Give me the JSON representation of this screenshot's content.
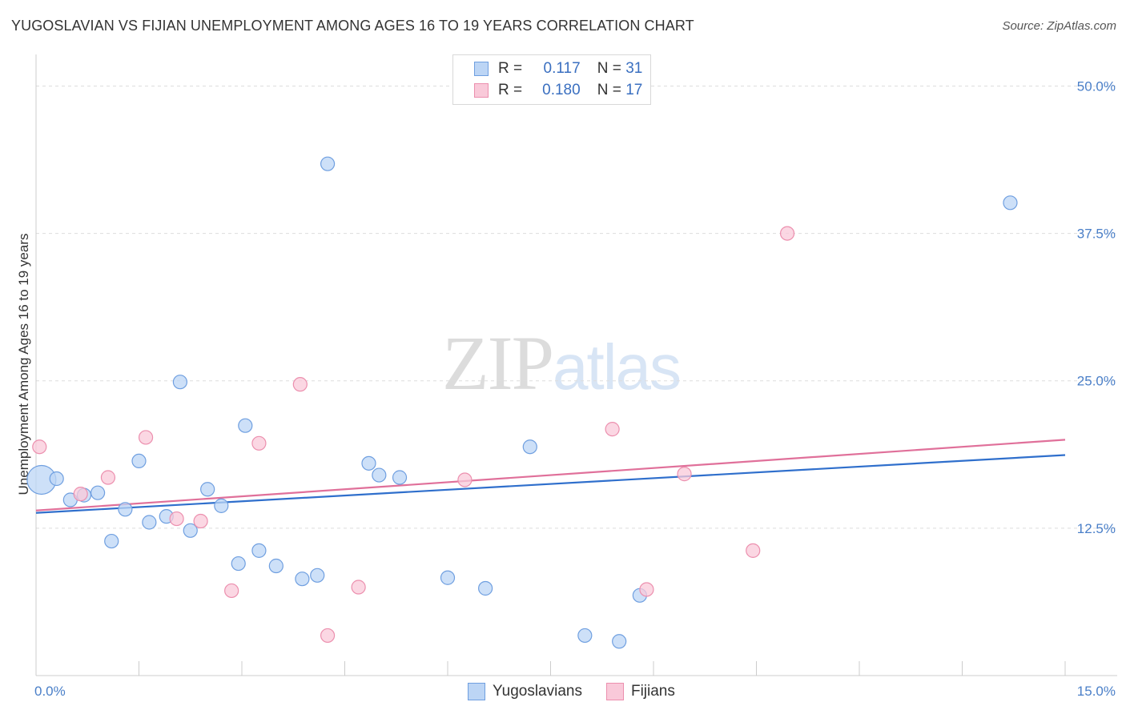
{
  "title": "YUGOSLAVIAN VS FIJIAN UNEMPLOYMENT AMONG AGES 16 TO 19 YEARS CORRELATION CHART",
  "source": "Source: ZipAtlas.com",
  "watermark": {
    "zip": "ZIP",
    "atlas": "atlas"
  },
  "legend": {
    "r_label": "R =",
    "n_label": "N =",
    "rows": [
      {
        "r": "0.117",
        "n": "31",
        "fill": "#bcd5f5",
        "stroke": "#6f9fe0"
      },
      {
        "r": "0.180",
        "n": "17",
        "fill": "#f9c9d9",
        "stroke": "#ec8fae"
      }
    ]
  },
  "bottom_legend": [
    {
      "label": "Yugoslavians",
      "fill": "#bcd5f5",
      "stroke": "#6f9fe0"
    },
    {
      "label": "Fijians",
      "fill": "#f9c9d9",
      "stroke": "#ec8fae"
    }
  ],
  "chart_data": {
    "type": "scatter",
    "title": "YUGOSLAVIAN VS FIJIAN UNEMPLOYMENT AMONG AGES 16 TO 19 YEARS CORRELATION CHART",
    "xlabel": "",
    "ylabel": "Unemployment Among Ages 16 to 19 years",
    "xlim": [
      0,
      15
    ],
    "ylim": [
      0,
      52
    ],
    "x_tick_labels": [
      {
        "value": 0,
        "label": "0.0%"
      },
      {
        "value": 15,
        "label": "15.0%"
      }
    ],
    "y_tick_labels": [
      {
        "value": 12.5,
        "label": "12.5%"
      },
      {
        "value": 25,
        "label": "25.0%"
      },
      {
        "value": 37.5,
        "label": "37.5%"
      },
      {
        "value": 50,
        "label": "50.0%"
      }
    ],
    "grid": true,
    "series": [
      {
        "name": "Yugoslavians",
        "color": "#6f9fe0",
        "fill": "#bcd5f5",
        "line_color": "#2f6fcc",
        "trend": {
          "x": [
            0,
            15
          ],
          "y": [
            13.8,
            18.7
          ]
        },
        "points": [
          {
            "x": 0.08,
            "y": 16.6,
            "big": true
          },
          {
            "x": 0.3,
            "y": 16.7
          },
          {
            "x": 0.5,
            "y": 14.9
          },
          {
            "x": 0.7,
            "y": 15.3
          },
          {
            "x": 0.9,
            "y": 15.5
          },
          {
            "x": 1.1,
            "y": 11.4
          },
          {
            "x": 1.3,
            "y": 14.1
          },
          {
            "x": 1.5,
            "y": 18.2
          },
          {
            "x": 1.65,
            "y": 13.0
          },
          {
            "x": 1.9,
            "y": 13.5
          },
          {
            "x": 2.1,
            "y": 24.9
          },
          {
            "x": 2.25,
            "y": 12.3
          },
          {
            "x": 2.5,
            "y": 15.8
          },
          {
            "x": 2.7,
            "y": 14.4
          },
          {
            "x": 2.95,
            "y": 9.5
          },
          {
            "x": 3.05,
            "y": 21.2
          },
          {
            "x": 3.25,
            "y": 10.6
          },
          {
            "x": 3.5,
            "y": 9.3
          },
          {
            "x": 3.88,
            "y": 8.2
          },
          {
            "x": 4.1,
            "y": 8.5
          },
          {
            "x": 4.25,
            "y": 43.4
          },
          {
            "x": 4.85,
            "y": 18.0
          },
          {
            "x": 5.0,
            "y": 17.0
          },
          {
            "x": 5.3,
            "y": 16.8
          },
          {
            "x": 6.0,
            "y": 8.3
          },
          {
            "x": 6.55,
            "y": 7.4
          },
          {
            "x": 7.2,
            "y": 19.4
          },
          {
            "x": 8.0,
            "y": 3.4
          },
          {
            "x": 8.5,
            "y": 2.9
          },
          {
            "x": 8.8,
            "y": 6.8
          },
          {
            "x": 14.2,
            "y": 40.1
          }
        ]
      },
      {
        "name": "Fijians",
        "color": "#ec8fae",
        "fill": "#f9c9d9",
        "line_color": "#e0709a",
        "trend": {
          "x": [
            0,
            15
          ],
          "y": [
            14.0,
            20.0
          ]
        },
        "points": [
          {
            "x": 0.05,
            "y": 19.4
          },
          {
            "x": 0.65,
            "y": 15.4
          },
          {
            "x": 1.05,
            "y": 16.8
          },
          {
            "x": 1.6,
            "y": 20.2
          },
          {
            "x": 2.05,
            "y": 13.3
          },
          {
            "x": 2.4,
            "y": 13.1
          },
          {
            "x": 2.85,
            "y": 7.2
          },
          {
            "x": 3.25,
            "y": 19.7
          },
          {
            "x": 3.85,
            "y": 24.7
          },
          {
            "x": 4.25,
            "y": 3.4
          },
          {
            "x": 4.7,
            "y": 7.5
          },
          {
            "x": 6.25,
            "y": 16.6
          },
          {
            "x": 8.4,
            "y": 20.9
          },
          {
            "x": 8.9,
            "y": 7.3
          },
          {
            "x": 9.45,
            "y": 17.1
          },
          {
            "x": 10.45,
            "y": 10.6
          },
          {
            "x": 10.95,
            "y": 37.5
          }
        ]
      }
    ]
  }
}
